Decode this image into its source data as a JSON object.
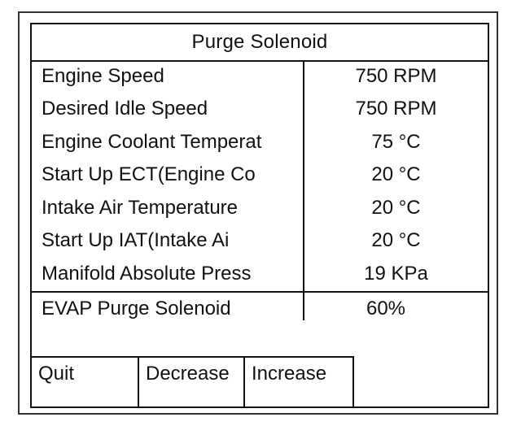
{
  "screen": {
    "title": "Purge Solenoid"
  },
  "parameters": [
    {
      "label": "Engine Speed",
      "value": "750 RPM"
    },
    {
      "label": "Desired Idle Speed",
      "value": "750 RPM"
    },
    {
      "label": "Engine Coolant Temperat",
      "value": "75 °C"
    },
    {
      "label": "Start Up ECT(Engine Co",
      "value": "20 °C"
    },
    {
      "label": "Intake Air Temperature",
      "value": "20 °C"
    },
    {
      "label": "Start Up IAT(Intake Ai",
      "value": "20 °C"
    },
    {
      "label": "Manifold Absolute Press",
      "value": "19 KPa"
    }
  ],
  "control": {
    "label": "EVAP Purge Solenoid",
    "value": "60%"
  },
  "softkeys": {
    "quit": "Quit",
    "decrease": "Decrease",
    "increase": "Increase"
  }
}
